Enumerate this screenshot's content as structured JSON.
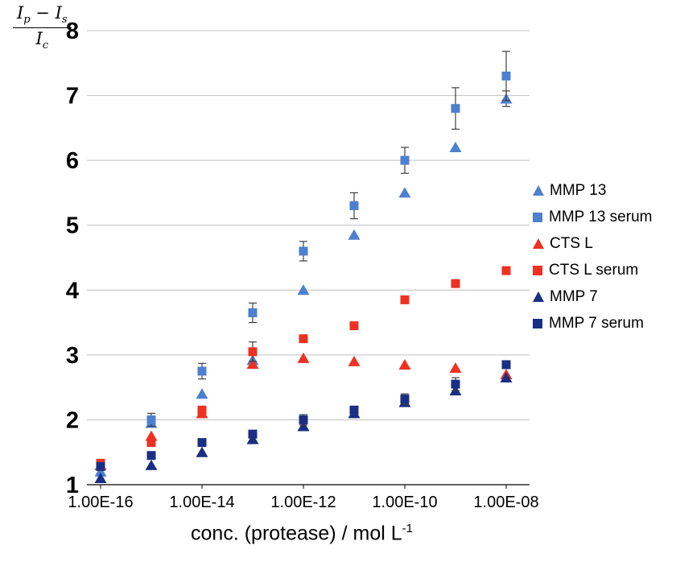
{
  "chart_data": {
    "type": "scatter",
    "title": "",
    "grid_on": true,
    "grid_color": "#bfbfbf",
    "error_bar_color": "#404040",
    "legend_position": "right",
    "x_axis": {
      "title": "conc. (protease) / mol L",
      "title_superscript": "-1",
      "scale": "log",
      "exponents": [
        -16,
        -15,
        -14,
        -13,
        -12,
        -11,
        -10,
        -9,
        -8
      ],
      "ticks": [
        {
          "exp": -16,
          "label": "1.00E-16"
        },
        {
          "exp": -14,
          "label": "1.00E-14"
        },
        {
          "exp": -12,
          "label": "1.00E-12"
        },
        {
          "exp": -10,
          "label": "1.00E-10"
        },
        {
          "exp": -8,
          "label": "1.00E-08"
        }
      ]
    },
    "y_axis": {
      "min": 1,
      "max": 8,
      "step": 1,
      "tick_labels": [
        "1",
        "2",
        "3",
        "4",
        "5",
        "6",
        "7",
        "8"
      ],
      "title_numerator": [
        {
          "t": "I",
          "sub": "p"
        },
        {
          "t": " − ",
          "sub": ""
        },
        {
          "t": "I",
          "sub": "s"
        }
      ],
      "title_denominator": [
        {
          "t": "I",
          "sub": "c"
        }
      ]
    },
    "series": [
      {
        "name": "MMP 13",
        "marker": "triangle",
        "color": "#4e7fd0",
        "values": [
          1.2,
          1.95,
          2.4,
          2.92,
          4.0,
          4.85,
          5.5,
          6.2,
          6.95
        ],
        "errors": [
          0,
          0,
          0,
          0,
          0,
          0,
          0,
          0,
          0.12
        ]
      },
      {
        "name": "MMP 13 serum",
        "marker": "square",
        "color": "#4e7fd0",
        "values": [
          1.3,
          2.0,
          2.75,
          3.65,
          4.6,
          5.3,
          6.0,
          6.8,
          7.3
        ],
        "errors": [
          0.05,
          0.1,
          0.12,
          0.15,
          0.15,
          0.2,
          0.2,
          0.32,
          0.38
        ]
      },
      {
        "name": "CTS L",
        "marker": "triangle",
        "color": "#ed3123",
        "values": [
          1.3,
          1.75,
          2.1,
          2.86,
          2.95,
          2.9,
          2.85,
          2.8,
          2.7
        ],
        "errors": [
          0,
          0,
          0,
          0,
          0,
          0,
          0,
          0,
          0
        ]
      },
      {
        "name": "CTS L serum",
        "marker": "square",
        "color": "#ed3123",
        "values": [
          1.33,
          1.65,
          2.15,
          3.05,
          3.25,
          3.45,
          3.85,
          4.1,
          4.3
        ],
        "errors": [
          0,
          0,
          0,
          0.15,
          0,
          0,
          0,
          0,
          0
        ]
      },
      {
        "name": "MMP 7",
        "marker": "triangle",
        "color": "#1a2f83",
        "values": [
          1.1,
          1.3,
          1.5,
          1.7,
          1.9,
          2.1,
          2.27,
          2.45,
          2.65
        ],
        "errors": [
          0,
          0,
          0,
          0,
          0,
          0,
          0,
          0,
          0
        ]
      },
      {
        "name": "MMP 7 serum",
        "marker": "square",
        "color": "#1a2f83",
        "values": [
          1.28,
          1.45,
          1.65,
          1.78,
          2.0,
          2.15,
          2.32,
          2.55,
          2.85
        ],
        "errors": [
          0,
          0,
          0,
          0,
          0.08,
          0,
          0.08,
          0.1,
          0
        ]
      }
    ]
  }
}
